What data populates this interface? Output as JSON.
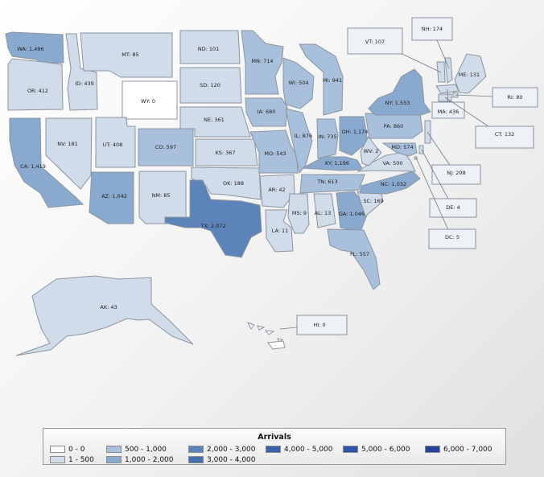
{
  "legend": {
    "title": "Arrivals",
    "items": [
      {
        "label": "0 - 0",
        "color": "#ffffff"
      },
      {
        "label": "1 - 500",
        "color": "#d0dcea"
      },
      {
        "label": "500 - 1,000",
        "color": "#a9c0dc"
      },
      {
        "label": "1,000 - 2,000",
        "color": "#8aa9ce"
      },
      {
        "label": "2,000 - 3,000",
        "color": "#5d84b8"
      },
      {
        "label": "3,000 - 4,000",
        "color": "#4570ad"
      },
      {
        "label": "4,000 - 5,000",
        "color": "#3a62aa"
      },
      {
        "label": "5,000 - 6,000",
        "color": "#2f56a6"
      },
      {
        "label": "6,000 - 7,000",
        "color": "#24439a"
      }
    ]
  },
  "states": [
    {
      "code": "WA",
      "label": "WA: 1,496",
      "value": 1496,
      "color": "#8aa9ce"
    },
    {
      "code": "OR",
      "label": "OR: 412",
      "value": 412,
      "color": "#d0dcea"
    },
    {
      "code": "CA",
      "label": "CA: 1,419",
      "value": 1419,
      "color": "#8aa9ce"
    },
    {
      "code": "ID",
      "label": "ID: 439",
      "value": 439,
      "color": "#d0dcea"
    },
    {
      "code": "NV",
      "label": "NV: 181",
      "value": 181,
      "color": "#d0dcea"
    },
    {
      "code": "MT",
      "label": "MT: 85",
      "value": 85,
      "color": "#d0dcea"
    },
    {
      "code": "WY",
      "label": "WY: 0",
      "value": 0,
      "color": "#ffffff"
    },
    {
      "code": "UT",
      "label": "UT: 408",
      "value": 408,
      "color": "#d0dcea"
    },
    {
      "code": "AZ",
      "label": "AZ: 1,042",
      "value": 1042,
      "color": "#8aa9ce"
    },
    {
      "code": "CO",
      "label": "CO: 597",
      "value": 597,
      "color": "#a9c0dc"
    },
    {
      "code": "NM",
      "label": "NM: 85",
      "value": 85,
      "color": "#d0dcea"
    },
    {
      "code": "ND",
      "label": "ND: 101",
      "value": 101,
      "color": "#d0dcea"
    },
    {
      "code": "SD",
      "label": "SD: 120",
      "value": 120,
      "color": "#d0dcea"
    },
    {
      "code": "NE",
      "label": "NE: 361",
      "value": 361,
      "color": "#d0dcea"
    },
    {
      "code": "KS",
      "label": "KS: 367",
      "value": 367,
      "color": "#d0dcea"
    },
    {
      "code": "OK",
      "label": "OK: 188",
      "value": 188,
      "color": "#d0dcea"
    },
    {
      "code": "TX",
      "label": "TX: 2,072",
      "value": 2072,
      "color": "#5d84b8"
    },
    {
      "code": "MN",
      "label": "MN: 714",
      "value": 714,
      "color": "#a9c0dc"
    },
    {
      "code": "IA",
      "label": "IA: 680",
      "value": 680,
      "color": "#a9c0dc"
    },
    {
      "code": "MO",
      "label": "MO: 543",
      "value": 543,
      "color": "#a9c0dc"
    },
    {
      "code": "AR",
      "label": "AR: 42",
      "value": 42,
      "color": "#d0dcea"
    },
    {
      "code": "LA",
      "label": "LA: 11",
      "value": 11,
      "color": "#d0dcea"
    },
    {
      "code": "WI",
      "label": "WI: 504",
      "value": 504,
      "color": "#a9c0dc"
    },
    {
      "code": "IL",
      "label": "IL: 876",
      "value": 876,
      "color": "#a9c0dc"
    },
    {
      "code": "MI",
      "label": "MI: 941",
      "value": 941,
      "color": "#a9c0dc"
    },
    {
      "code": "IN",
      "label": "IN: 735",
      "value": 735,
      "color": "#a9c0dc"
    },
    {
      "code": "OH",
      "label": "OH: 1,174",
      "value": 1174,
      "color": "#8aa9ce"
    },
    {
      "code": "KY",
      "label": "KY: 1,196",
      "value": 1196,
      "color": "#8aa9ce"
    },
    {
      "code": "TN",
      "label": "TN: 613",
      "value": 613,
      "color": "#a9c0dc"
    },
    {
      "code": "MS",
      "label": "MS: 9",
      "value": 9,
      "color": "#d0dcea"
    },
    {
      "code": "AL",
      "label": "AL: 13",
      "value": 13,
      "color": "#d0dcea"
    },
    {
      "code": "GA",
      "label": "GA: 1,046",
      "value": 1046,
      "color": "#8aa9ce"
    },
    {
      "code": "FL",
      "label": "FL: 557",
      "value": 557,
      "color": "#a9c0dc"
    },
    {
      "code": "SC",
      "label": "SC: 169",
      "value": 169,
      "color": "#d0dcea"
    },
    {
      "code": "NC",
      "label": "NC: 1,032",
      "value": 1032,
      "color": "#8aa9ce"
    },
    {
      "code": "VA",
      "label": "VA: 500",
      "value": 500,
      "color": "#d0dcea"
    },
    {
      "code": "WV",
      "label": "WV: 2",
      "value": 2,
      "color": "#d0dcea"
    },
    {
      "code": "MD",
      "label": "MD: 574",
      "value": 574,
      "color": "#a9c0dc"
    },
    {
      "code": "PA",
      "label": "PA: 860",
      "value": 860,
      "color": "#a9c0dc"
    },
    {
      "code": "NY",
      "label": "NY: 1,553",
      "value": 1553,
      "color": "#8aa9ce"
    },
    {
      "code": "ME",
      "label": "ME: 131",
      "value": 131,
      "color": "#d0dcea"
    },
    {
      "code": "AK",
      "label": "AK: 43",
      "value": 43,
      "color": "#d0dcea"
    }
  ],
  "callouts": [
    {
      "code": "NH",
      "label": "NH: 174",
      "value": 174,
      "color": "#d0dcea"
    },
    {
      "code": "VT",
      "label": "VT: 107",
      "value": 107,
      "color": "#d0dcea"
    },
    {
      "code": "MA",
      "label": "MA: 436",
      "value": 436,
      "color": "#d0dcea"
    },
    {
      "code": "RI",
      "label": "RI: 80",
      "value": 80,
      "color": "#d0dcea"
    },
    {
      "code": "CT",
      "label": "CT: 132",
      "value": 132,
      "color": "#d0dcea"
    },
    {
      "code": "NJ",
      "label": "NJ: 208",
      "value": 208,
      "color": "#d0dcea"
    },
    {
      "code": "DE",
      "label": "DE: 4",
      "value": 4,
      "color": "#d0dcea"
    },
    {
      "code": "DC",
      "label": "DC: 5",
      "value": 5,
      "color": "#d0dcea"
    },
    {
      "code": "HI",
      "label": "HI: 0",
      "value": 0,
      "color": "#ffffff"
    }
  ]
}
